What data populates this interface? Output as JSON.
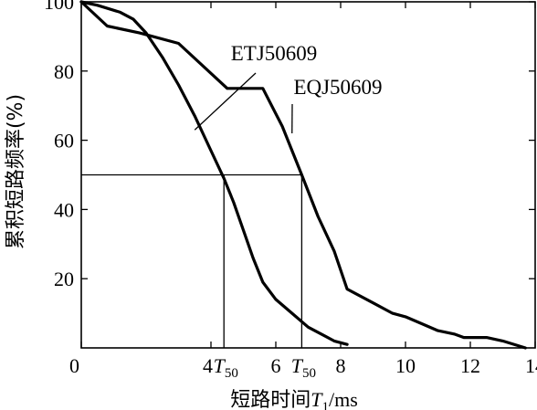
{
  "chart_data": {
    "type": "line",
    "title": "",
    "xlabel_prefix": "短路时间",
    "xlabel_var": "T",
    "xlabel_sub": "1",
    "xlabel_suffix": "/ms",
    "ylabel": "累积短路频率(%)",
    "xlim": [
      0,
      14
    ],
    "ylim": [
      0,
      100
    ],
    "x_ticks": [
      0,
      4,
      6,
      8,
      10,
      12,
      14
    ],
    "y_ticks": [
      20,
      40,
      60,
      80,
      100
    ],
    "grid": false,
    "series": [
      {
        "name": "ETJ50609",
        "x": [
          0,
          0.5,
          1.2,
          1.6,
          2.0,
          2.5,
          3.0,
          3.5,
          4.0,
          4.4,
          4.7,
          5.0,
          5.3,
          5.6,
          6.0,
          6.5,
          7.0,
          7.4,
          7.8,
          8.2
        ],
        "y": [
          100,
          99,
          97,
          95,
          91,
          84,
          76,
          67,
          57,
          49,
          42,
          34,
          26,
          19,
          14,
          10,
          6,
          4,
          2,
          1
        ]
      },
      {
        "name": "EQJ50609",
        "x": [
          0,
          0.8,
          1.8,
          3.0,
          4.5,
          5.1,
          5.6,
          6.2,
          6.8,
          7.3,
          7.8,
          8.2,
          9.0,
          9.6,
          10.0,
          10.5,
          11.0,
          11.5,
          11.8,
          12.5,
          13.0,
          13.7
        ],
        "y": [
          100,
          93,
          91,
          88,
          75,
          75,
          75,
          64,
          50,
          38,
          28,
          17,
          13,
          10,
          9,
          7,
          5,
          4,
          3,
          3,
          2,
          0
        ]
      }
    ],
    "annotations": {
      "reference_y": 50,
      "t50_marker_label": "T",
      "t50_marker_sub": "50",
      "t50_values": [
        4.4,
        6.8
      ],
      "callouts": [
        {
          "text": "ETJ50609",
          "series": "ETJ50609",
          "point_x": 3.5,
          "point_y": 63
        },
        {
          "text": "EQJ50609",
          "series": "EQJ50609",
          "point_x": 6.5,
          "point_y": 62
        }
      ]
    }
  }
}
